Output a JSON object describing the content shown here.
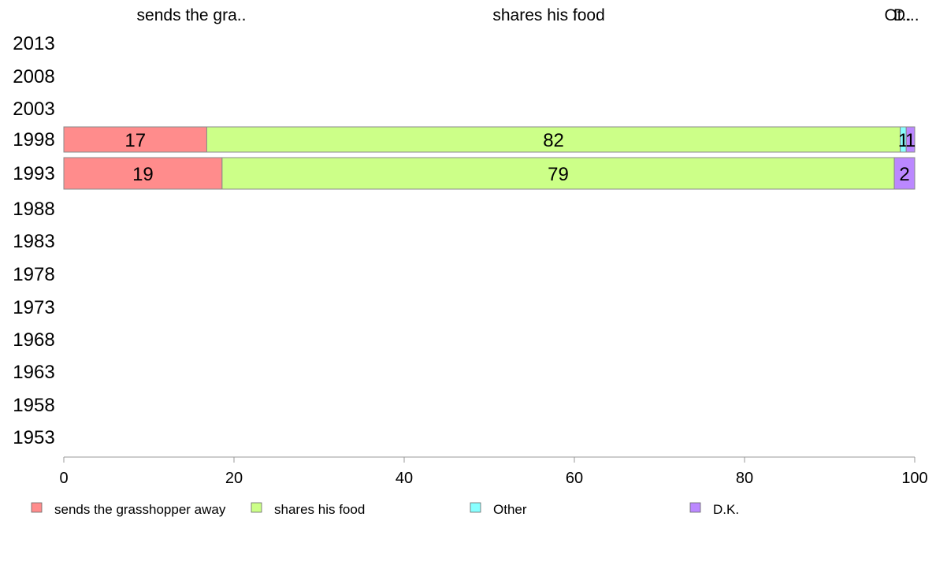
{
  "chart_data": {
    "type": "bar",
    "orientation": "horizontal",
    "stacked": true,
    "categories": [
      "2013",
      "2008",
      "2003",
      "1998",
      "1993",
      "1988",
      "1983",
      "1978",
      "1973",
      "1968",
      "1963",
      "1958",
      "1953"
    ],
    "series": [
      {
        "name": "sends the grasshopper away",
        "color": "#ff8c8c",
        "values": [
          null,
          null,
          null,
          16.8,
          18.6,
          null,
          null,
          null,
          null,
          null,
          null,
          null,
          null
        ],
        "labels": [
          "",
          "",
          "",
          "17",
          "19",
          "",
          "",
          "",
          "",
          "",
          "",
          "",
          ""
        ]
      },
      {
        "name": "shares his food",
        "color": "#ccff88",
        "values": [
          null,
          null,
          null,
          81.5,
          79.0,
          null,
          null,
          null,
          null,
          null,
          null,
          null,
          null
        ],
        "labels": [
          "",
          "",
          "",
          "82",
          "79",
          "",
          "",
          "",
          "",
          "",
          "",
          "",
          ""
        ]
      },
      {
        "name": "Other",
        "color": "#88ffff",
        "values": [
          null,
          null,
          null,
          0.7,
          0.0,
          null,
          null,
          null,
          null,
          null,
          null,
          null,
          null
        ],
        "labels": [
          "",
          "",
          "",
          "1",
          "",
          "",
          "",
          "",
          "",
          "",
          "",
          "",
          ""
        ]
      },
      {
        "name": "D.K.",
        "color": "#bb88ff",
        "values": [
          null,
          null,
          null,
          1.0,
          2.4,
          null,
          null,
          null,
          null,
          null,
          null,
          null,
          null
        ],
        "labels": [
          "",
          "",
          "",
          "1",
          "2",
          "",
          "",
          "",
          "",
          "",
          "",
          "",
          ""
        ]
      }
    ],
    "column_headers": [
      {
        "text": "sends the gra..",
        "at": 15
      },
      {
        "text": "shares his food",
        "at": 57
      },
      {
        "text": "Ot..",
        "at": 98
      },
      {
        "text": "D...",
        "at": 99
      }
    ],
    "xlim": [
      0,
      100
    ],
    "xticks": [
      "0",
      "20",
      "40",
      "60",
      "80",
      "100"
    ],
    "grid": false,
    "legend_position": "bottom"
  }
}
